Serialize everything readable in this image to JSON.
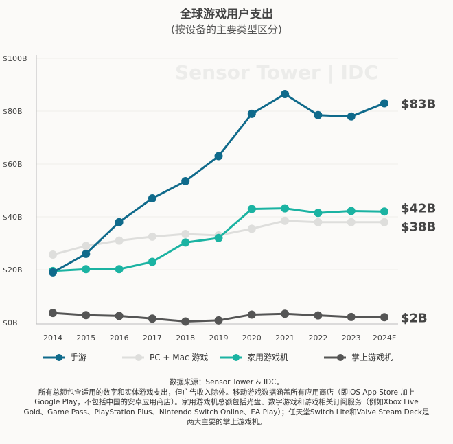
{
  "chart_data": {
    "type": "line",
    "title": "全球游戏用户支出",
    "subtitle": "(按设备的主要类型区分)",
    "watermark": "Sensor Tower | IDC",
    "xlabel": "",
    "ylabel": "",
    "x": [
      "2014",
      "2015",
      "2016",
      "2017",
      "2018",
      "2019",
      "2020",
      "2021",
      "2022",
      "2023",
      "2024F"
    ],
    "yticks": [
      "$0B",
      "$20B",
      "$40B",
      "$60B",
      "$80B",
      "$100B"
    ],
    "ylim": [
      0,
      100
    ],
    "grid": true,
    "legend_position": "bottom",
    "series": [
      {
        "name": "手游",
        "color": "#0f6a8b",
        "end_label": "$83B",
        "values": [
          19,
          26,
          38,
          47,
          53.5,
          63,
          79,
          86.5,
          78.5,
          78,
          83
        ]
      },
      {
        "name": "PC + Mac 游戏",
        "color": "#dededc",
        "end_label": "$38B",
        "values": [
          25.7,
          29,
          31,
          32.5,
          33.5,
          33,
          35.5,
          38.5,
          38,
          38,
          38
        ]
      },
      {
        "name": "家用游戏机",
        "color": "#1bb3a2",
        "end_label": "$42B",
        "values": [
          19.5,
          20.2,
          20.2,
          23,
          30.3,
          32,
          43,
          43.2,
          41.5,
          42.2,
          42
        ]
      },
      {
        "name": "掌上游戏机",
        "color": "#555555",
        "end_label": "$2B",
        "values": [
          3.6,
          2.8,
          2.5,
          1.5,
          0.4,
          0.8,
          3,
          3.3,
          2.7,
          2.1,
          2
        ]
      }
    ]
  },
  "footnote": [
    "数据来源：Sensor Tower & IDC。",
    "所有总额包含适用的数字和实体游戏支出，但广告收入除外。移动游戏数据涵盖所有应用商店（即iOS App Store 加上",
    "Google Play，不包括中国的安卓应用商店）。家用游戏机总额包括光盘、数字游戏和游戏相关订阅服务（例如Xbox Live",
    "Gold、Game Pass、PlayStation Plus、Nintendo Switch Online、EA Play）；任天堂Switch Lite和Valve Steam Deck是",
    "两大主要的掌上游戏机。"
  ]
}
